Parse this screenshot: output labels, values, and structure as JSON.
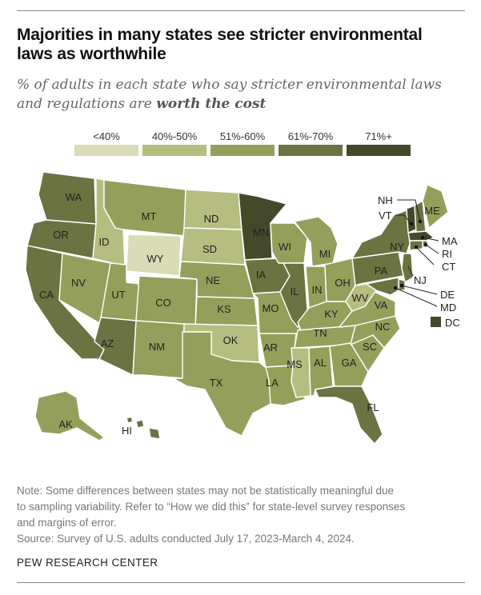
{
  "title_line1": "Majorities in many states see stricter environmental",
  "title_line2": "laws as worthwhile",
  "subtitle_prefix": "% of adults in each state who say stricter environmental laws and regulations are ",
  "subtitle_emphasis": "worth the cost",
  "legend": [
    {
      "label": "<40%",
      "color": "#d9dcb6"
    },
    {
      "label": "40%-50%",
      "color": "#b6bd81"
    },
    {
      "label": "51%-60%",
      "color": "#949f5b"
    },
    {
      "label": "61%-70%",
      "color": "#6a7341"
    },
    {
      "label": "71%+",
      "color": "#45492a"
    }
  ],
  "map_data": {
    "type": "choropleth",
    "states": [
      {
        "code": "WA",
        "bin": "61%-70%"
      },
      {
        "code": "OR",
        "bin": "61%-70%"
      },
      {
        "code": "CA",
        "bin": "61%-70%"
      },
      {
        "code": "ID",
        "bin": "40%-50%"
      },
      {
        "code": "NV",
        "bin": "51%-60%"
      },
      {
        "code": "MT",
        "bin": "51%-60%"
      },
      {
        "code": "WY",
        "bin": "<40%"
      },
      {
        "code": "UT",
        "bin": "51%-60%"
      },
      {
        "code": "AZ",
        "bin": "61%-70%"
      },
      {
        "code": "CO",
        "bin": "51%-60%"
      },
      {
        "code": "NM",
        "bin": "51%-60%"
      },
      {
        "code": "ND",
        "bin": "40%-50%"
      },
      {
        "code": "SD",
        "bin": "40%-50%"
      },
      {
        "code": "NE",
        "bin": "51%-60%"
      },
      {
        "code": "KS",
        "bin": "51%-60%"
      },
      {
        "code": "OK",
        "bin": "40%-50%"
      },
      {
        "code": "TX",
        "bin": "51%-60%"
      },
      {
        "code": "MN",
        "bin": "71%+"
      },
      {
        "code": "IA",
        "bin": "61%-70%"
      },
      {
        "code": "MO",
        "bin": "51%-60%"
      },
      {
        "code": "AR",
        "bin": "51%-60%"
      },
      {
        "code": "LA",
        "bin": "51%-60%"
      },
      {
        "code": "WI",
        "bin": "51%-60%"
      },
      {
        "code": "IL",
        "bin": "61%-70%"
      },
      {
        "code": "MI",
        "bin": "51%-60%"
      },
      {
        "code": "IN",
        "bin": "51%-60%"
      },
      {
        "code": "OH",
        "bin": "51%-60%"
      },
      {
        "code": "KY",
        "bin": "51%-60%"
      },
      {
        "code": "TN",
        "bin": "51%-60%"
      },
      {
        "code": "MS",
        "bin": "40%-50%"
      },
      {
        "code": "AL",
        "bin": "51%-60%"
      },
      {
        "code": "GA",
        "bin": "51%-60%"
      },
      {
        "code": "FL",
        "bin": "61%-70%"
      },
      {
        "code": "SC",
        "bin": "51%-60%"
      },
      {
        "code": "NC",
        "bin": "51%-60%"
      },
      {
        "code": "VA",
        "bin": "51%-60%"
      },
      {
        "code": "WV",
        "bin": "40%-50%"
      },
      {
        "code": "PA",
        "bin": "61%-70%"
      },
      {
        "code": "NY",
        "bin": "61%-70%"
      },
      {
        "code": "VT",
        "bin": "71%+"
      },
      {
        "code": "NH",
        "bin": "61%-70%"
      },
      {
        "code": "ME",
        "bin": "51%-60%"
      },
      {
        "code": "MA",
        "bin": "71%+"
      },
      {
        "code": "RI",
        "bin": "61%-70%"
      },
      {
        "code": "CT",
        "bin": "61%-70%"
      },
      {
        "code": "NJ",
        "bin": "61%-70%"
      },
      {
        "code": "DE",
        "bin": "61%-70%"
      },
      {
        "code": "MD",
        "bin": "61%-70%"
      },
      {
        "code": "DC",
        "bin": "71%+"
      },
      {
        "code": "AK",
        "bin": "51%-60%"
      },
      {
        "code": "HI",
        "bin": "61%-70%"
      }
    ]
  },
  "note_line1": "Note: Some differences between states may not be statistically meaningful due",
  "note_line2": "to sampling variability. Refer to “How we did this” for state-level survey responses",
  "note_line3": "and margins of error.",
  "source": "Source: Survey of U.S. adults conducted July 17, 2023-March 4, 2024.",
  "brand": "PEW RESEARCH CENTER"
}
